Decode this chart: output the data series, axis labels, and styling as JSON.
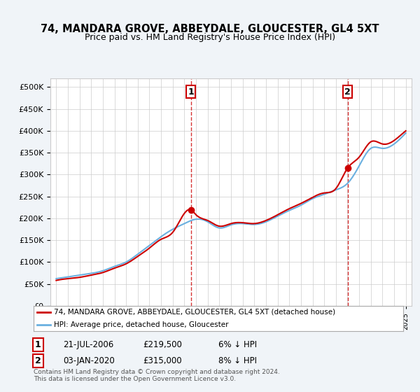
{
  "title": "74, MANDARA GROVE, ABBEYDALE, GLOUCESTER, GL4 5XT",
  "subtitle": "Price paid vs. HM Land Registry's House Price Index (HPI)",
  "legend_line1": "74, MANDARA GROVE, ABBEYDALE, GLOUCESTER, GL4 5XT (detached house)",
  "legend_line2": "HPI: Average price, detached house, Gloucester",
  "annotation1_label": "1",
  "annotation1_date": "21-JUL-2006",
  "annotation1_price": "£219,500",
  "annotation1_hpi": "6% ↓ HPI",
  "annotation1_year": 2006.55,
  "annotation1_value": 219500,
  "annotation2_label": "2",
  "annotation2_date": "03-JAN-2020",
  "annotation2_price": "£315,000",
  "annotation2_hpi": "8% ↓ HPI",
  "annotation2_year": 2020.01,
  "annotation2_value": 315000,
  "hpi_color": "#6ab0e0",
  "price_color": "#cc0000",
  "vline_color": "#cc0000",
  "background_color": "#f0f4f8",
  "plot_bg_color": "#ffffff",
  "ylim": [
    0,
    520000
  ],
  "yticks": [
    0,
    50000,
    100000,
    150000,
    200000,
    250000,
    300000,
    350000,
    400000,
    450000,
    500000
  ],
  "footer": "Contains HM Land Registry data © Crown copyright and database right 2024.\nThis data is licensed under the Open Government Licence v3.0.",
  "hpi_years": [
    1995,
    1996,
    1997,
    1998,
    1999,
    2000,
    2001,
    2002,
    2003,
    2004,
    2005,
    2006,
    2007,
    2008,
    2009,
    2010,
    2011,
    2012,
    2013,
    2014,
    2015,
    2016,
    2017,
    2018,
    2019,
    2020,
    2021,
    2022,
    2023,
    2024,
    2025
  ],
  "hpi_values": [
    62000,
    66000,
    70000,
    74000,
    80000,
    90000,
    100000,
    118000,
    138000,
    158000,
    175000,
    188000,
    198000,
    192000,
    178000,
    185000,
    188000,
    186000,
    192000,
    205000,
    218000,
    230000,
    245000,
    255000,
    265000,
    280000,
    320000,
    360000,
    360000,
    370000,
    395000
  ],
  "price_years": [
    1995.5,
    1996.0,
    1997.5,
    2006.55,
    2020.01
  ],
  "price_values": [
    62000,
    64000,
    68000,
    219500,
    315000
  ]
}
